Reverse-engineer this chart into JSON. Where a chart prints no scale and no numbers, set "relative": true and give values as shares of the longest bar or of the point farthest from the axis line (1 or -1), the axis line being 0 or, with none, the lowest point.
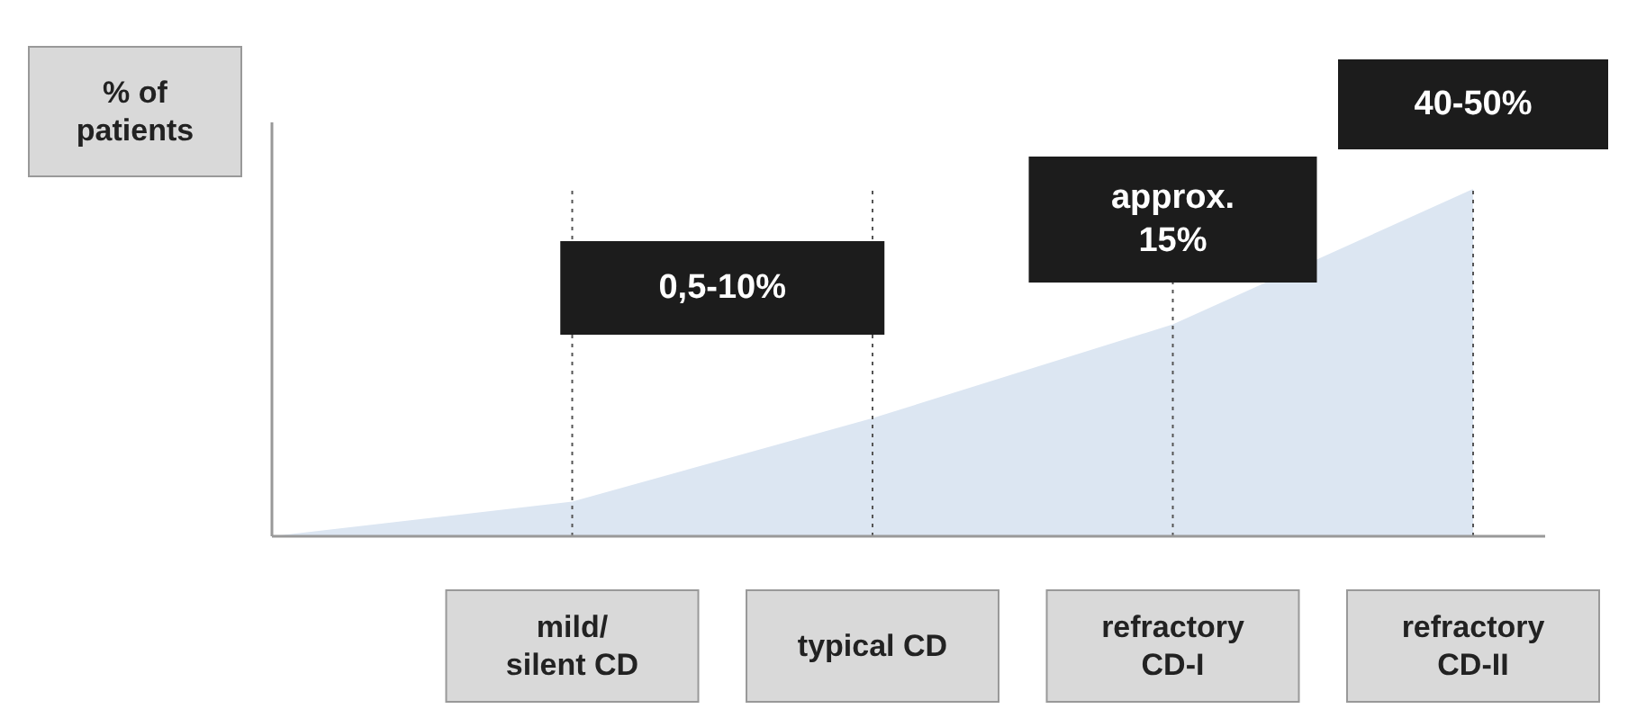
{
  "chart_data": {
    "type": "area",
    "relative": true,
    "ylabel": "% of patients",
    "categories": [
      null,
      "mild/\nsilent CD",
      "typical CD",
      "refractory\nCD-I",
      "refractory\nCD-II"
    ],
    "values": [
      0,
      0.1,
      0.34,
      0.61,
      1
    ],
    "color": "#dce6f2",
    "grid": "x",
    "annotations": [
      "0,5-10%",
      "approx.\n15%",
      "40-50%"
    ]
  }
}
